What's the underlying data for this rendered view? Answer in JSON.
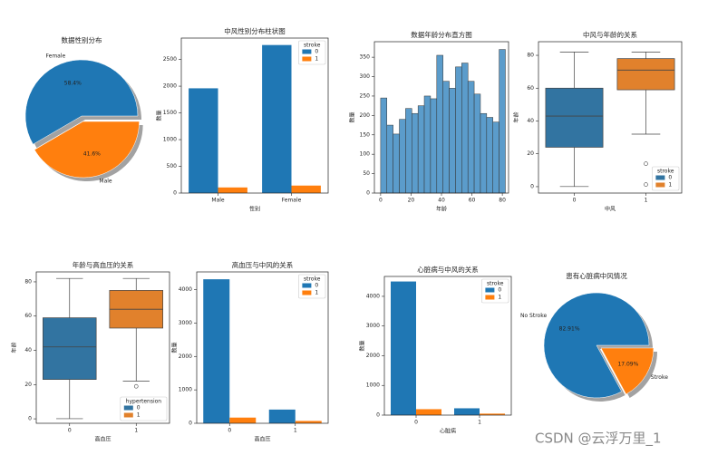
{
  "charts": [
    {
      "chart_data": {
        "type": "pie",
        "title": "数据性别分布",
        "categories": [
          "Female",
          "Male"
        ],
        "values": [
          58.4,
          41.6
        ],
        "value_labels": [
          "58.4%",
          "41.6%"
        ],
        "colors": [
          "#1f77b4",
          "#ff7f0e"
        ],
        "explode": [
          0,
          0.1
        ],
        "shadow": true
      }
    },
    {
      "chart_data": {
        "type": "bar",
        "title": "中风性别分布柱状图",
        "x_label": "性别",
        "y_label": "数量",
        "categories": [
          "Male",
          "Female"
        ],
        "legend_title": "stroke",
        "legend": "upper right",
        "series": [
          {
            "name": "0",
            "color": "#1f77b4",
            "values": [
              1960,
              2770
            ]
          },
          {
            "name": "1",
            "color": "#ff7f0e",
            "values": [
              105,
              140
            ]
          }
        ],
        "ylim": [
          0,
          2900
        ],
        "yticks": [
          0,
          500,
          1000,
          1500,
          2000,
          2500
        ]
      }
    },
    {
      "chart_data": {
        "type": "histogram",
        "title": "数据年龄分布直方图",
        "x_label": "年龄",
        "y_label": "数量",
        "color": "#5b9ccb",
        "bins": [
          0,
          4.1,
          8.2,
          12.3,
          16.4,
          20.5,
          24.6,
          28.7,
          32.8,
          36.9,
          41,
          45.1,
          49.2,
          53.3,
          57.4,
          61.5,
          65.6,
          69.7,
          73.8,
          77.9,
          82
        ],
        "counts": [
          245,
          175,
          152,
          190,
          218,
          205,
          225,
          250,
          243,
          355,
          288,
          270,
          325,
          335,
          288,
          255,
          205,
          195,
          183,
          370
        ],
        "xlim": [
          -4.1,
          84.1
        ],
        "xticks": [
          0,
          20,
          40,
          60,
          80
        ],
        "ylim": [
          0,
          390
        ],
        "yticks": [
          0,
          50,
          100,
          150,
          200,
          250,
          300,
          350
        ]
      }
    },
    {
      "chart_data": {
        "type": "box",
        "title": "中风与年龄的关系",
        "x_label": "中风",
        "y_label": "年龄",
        "categories": [
          "0",
          "1"
        ],
        "legend_title": "stroke",
        "legend": "lower right",
        "series": [
          {
            "name": "0",
            "color": "#3274a1",
            "min": 0.08,
            "q1": 24,
            "median": 43,
            "q3": 60,
            "max": 82,
            "outliers": []
          },
          {
            "name": "1",
            "color": "#e1812c",
            "min": 32,
            "q1": 59,
            "median": 71,
            "q3": 78,
            "max": 82,
            "outliers": [
              14,
              1.3
            ]
          }
        ],
        "ylim": [
          -3.9,
          88.3
        ],
        "yticks": [
          0,
          20,
          40,
          60,
          80
        ]
      }
    },
    {
      "chart_data": {
        "type": "box",
        "title": "年龄与高血压的关系",
        "x_label": "高血压",
        "y_label": "年龄",
        "categories": [
          "0",
          "1"
        ],
        "legend_title": "hypertension",
        "legend": "lower right",
        "series": [
          {
            "name": "0",
            "color": "#3274a1",
            "min": 0.08,
            "q1": 23,
            "median": 42,
            "q3": 59,
            "max": 82,
            "outliers": []
          },
          {
            "name": "1",
            "color": "#e1812c",
            "min": 22,
            "q1": 53,
            "median": 64,
            "q3": 75,
            "max": 82,
            "outliers": [
              19
            ]
          }
        ],
        "ylim": [
          -2.6,
          85.8
        ],
        "yticks": [
          0,
          20,
          40,
          60,
          80
        ]
      }
    },
    {
      "chart_data": {
        "type": "bar",
        "title": "高血压与中风的关系",
        "x_label": "高血压",
        "y_label": "数量",
        "categories": [
          "0",
          "1"
        ],
        "legend_title": "stroke",
        "legend": "upper right",
        "series": [
          {
            "name": "0",
            "color": "#1f77b4",
            "values": [
              4310,
              410
            ]
          },
          {
            "name": "1",
            "color": "#ff7f0e",
            "values": [
              170,
              70
            ]
          }
        ],
        "ylim": [
          0,
          4530
        ],
        "yticks": [
          0,
          1000,
          2000,
          3000,
          4000
        ]
      }
    },
    {
      "chart_data": {
        "type": "bar",
        "title": "心脏病与中风的关系",
        "x_label": "心脏病",
        "y_label": "数量",
        "categories": [
          "0",
          "1"
        ],
        "legend_title": "stroke",
        "legend": "upper right",
        "series": [
          {
            "name": "0",
            "color": "#1f77b4",
            "values": [
              4500,
              230
            ]
          },
          {
            "name": "1",
            "color": "#ff7f0e",
            "values": [
              200,
              50
            ]
          }
        ],
        "ylim": [
          0,
          4670
        ],
        "yticks": [
          0,
          1000,
          2000,
          3000,
          4000
        ]
      }
    },
    {
      "chart_data": {
        "type": "pie",
        "title": "患有心脏病中风情况",
        "categories": [
          "No Stroke",
          "Stroke"
        ],
        "values": [
          82.91,
          17.09
        ],
        "value_labels": [
          "82.91%",
          "17.09%"
        ],
        "colors": [
          "#1f77b4",
          "#ff7f0e"
        ],
        "explode": [
          0,
          0.1
        ],
        "shadow": true
      }
    }
  ],
  "watermark": "CSDN @云浮万里_1"
}
